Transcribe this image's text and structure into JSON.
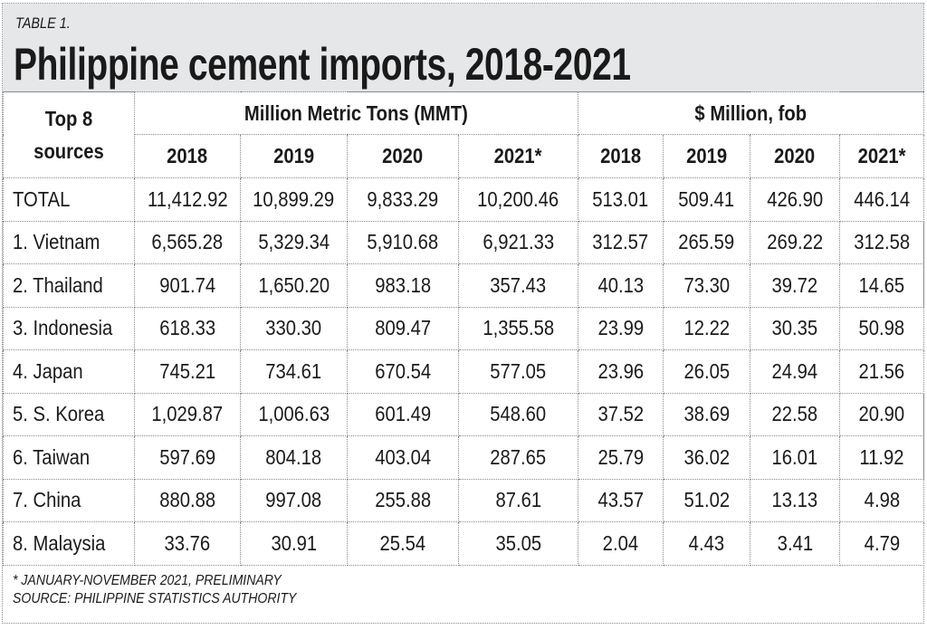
{
  "header": {
    "kicker": "TABLE 1.",
    "title": "Philippine cement imports, 2018-2021"
  },
  "table": {
    "source_header": "Top 8 sources",
    "groups": [
      "Million Metric Tons (MMT)",
      "$ Million, fob"
    ],
    "years": [
      "2018",
      "2019",
      "2020",
      "2021*",
      "2018",
      "2019",
      "2020",
      "2021*"
    ],
    "rows": [
      {
        "source": "TOTAL",
        "values": [
          "11,412.92",
          "10,899.29",
          "9,833.29",
          "10,200.46",
          "513.01",
          "509.41",
          "426.90",
          "446.14"
        ]
      },
      {
        "source": "1. Vietnam",
        "values": [
          "6,565.28",
          "5,329.34",
          "5,910.68",
          "6,921.33",
          "312.57",
          "265.59",
          "269.22",
          "312.58"
        ]
      },
      {
        "source": "2. Thailand",
        "values": [
          "901.74",
          "1,650.20",
          "983.18",
          "357.43",
          "40.13",
          "73.30",
          "39.72",
          "14.65"
        ]
      },
      {
        "source": "3. Indonesia",
        "values": [
          "618.33",
          "330.30",
          "809.47",
          "1,355.58",
          "23.99",
          "12.22",
          "30.35",
          "50.98"
        ]
      },
      {
        "source": "4. Japan",
        "values": [
          "745.21",
          "734.61",
          "670.54",
          "577.05",
          "23.96",
          "26.05",
          "24.94",
          "21.56"
        ]
      },
      {
        "source": "5. S. Korea",
        "values": [
          "1,029.87",
          "1,006.63",
          "601.49",
          "548.60",
          "37.52",
          "38.69",
          "22.58",
          "20.90"
        ]
      },
      {
        "source": "6. Taiwan",
        "values": [
          "597.69",
          "804.18",
          "403.04",
          "287.65",
          "25.79",
          "36.02",
          "16.01",
          "11.92"
        ]
      },
      {
        "source": "7. China",
        "values": [
          "880.88",
          "997.08",
          "255.88",
          "87.61",
          "43.57",
          "51.02",
          "13.13",
          "4.98"
        ]
      },
      {
        "source": "8. Malaysia",
        "values": [
          "33.76",
          "30.91",
          "25.54",
          "35.05",
          "2.04",
          "4.43",
          "3.41",
          "4.79"
        ]
      }
    ]
  },
  "footnotes": {
    "note": "* JANUARY-NOVEMBER 2021, PRELIMINARY",
    "source": "SOURCE: PHILIPPINE STATISTICS AUTHORITY"
  },
  "colors": {
    "header_band": "#e6e7e9",
    "border": "#8a8a8a",
    "text": "#1a1a1a"
  }
}
